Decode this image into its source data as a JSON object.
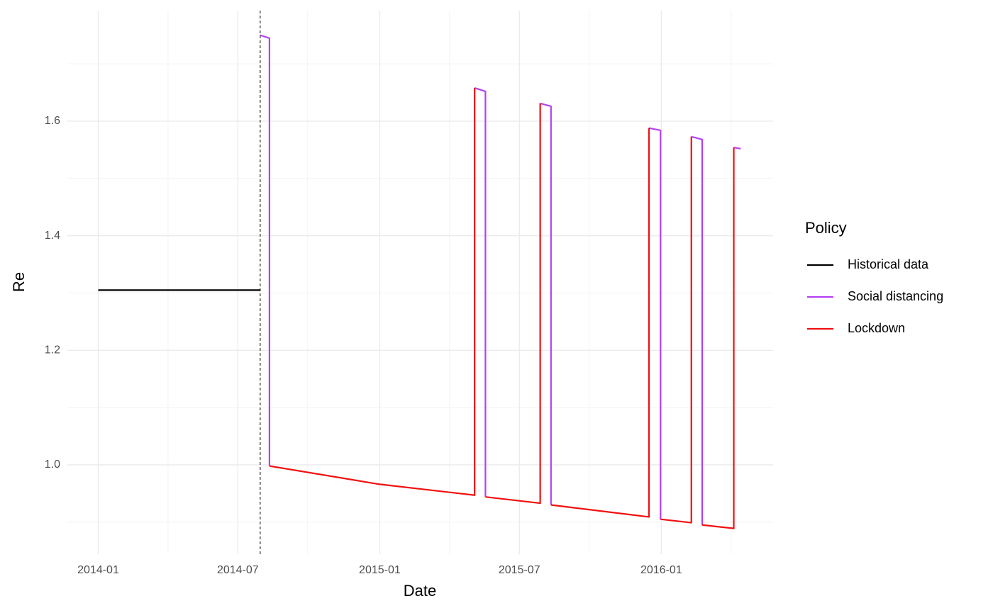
{
  "chart_data": {
    "type": "line",
    "x_label": "Date",
    "y_label": "Re",
    "legend_title": "Policy",
    "legend_position": "right",
    "grid": true,
    "xlim": [
      "2013-11-22",
      "2016-05-25"
    ],
    "xticks": [
      {
        "value": "2014-01-01",
        "label": "2014-01"
      },
      {
        "value": "2014-07-01",
        "label": "2014-07"
      },
      {
        "value": "2015-01-01",
        "label": "2015-01"
      },
      {
        "value": "2015-07-01",
        "label": "2015-07"
      },
      {
        "value": "2016-01-01",
        "label": "2016-01"
      }
    ],
    "ylim": [
      0.844,
      1.793
    ],
    "yticks": [
      {
        "value": 1,
        "label": "1.0"
      },
      1.2,
      1.4,
      1.6
    ],
    "vline": "2014-07-30",
    "series": [
      {
        "name": "Historical data",
        "color": "#000000",
        "x": [
          "2014-01-01",
          "2014-07-30"
        ],
        "values": [
          1.305,
          1.305
        ]
      },
      {
        "name": "Social distancing",
        "color": "#b541f5",
        "x": [
          "2014-07-30",
          "2014-08-11",
          "2014-08-11",
          null,
          "2015-05-04",
          "2015-05-18",
          "2015-05-18",
          null,
          "2015-07-28",
          "2015-08-11",
          "2015-08-11",
          null,
          "2015-12-16",
          "2015-12-31",
          "2015-12-31",
          null,
          "2016-02-09",
          "2016-02-23",
          "2016-02-23",
          null,
          "2016-04-04",
          "2016-04-13"
        ],
        "values": [
          1.75,
          1.745,
          0.998,
          null,
          1.658,
          1.652,
          0.944,
          null,
          1.631,
          1.626,
          0.93,
          null,
          1.588,
          1.584,
          0.905,
          null,
          1.573,
          1.568,
          0.895,
          null,
          1.554,
          1.552
        ]
      },
      {
        "name": "Lockdown",
        "color": "#f01010",
        "x": [
          "2014-08-11",
          "2015-01-01",
          "2015-05-04",
          "2015-05-04",
          null,
          "2015-05-18",
          "2015-07-28",
          "2015-07-28",
          null,
          "2015-08-11",
          "2015-12-16",
          "2015-12-16",
          null,
          "2015-12-31",
          "2016-02-09",
          "2016-02-09",
          null,
          "2016-02-23",
          "2016-04-04",
          "2016-04-04"
        ],
        "values": [
          0.998,
          0.966,
          0.947,
          1.658,
          null,
          0.944,
          0.933,
          1.631,
          null,
          0.93,
          0.909,
          1.588,
          null,
          0.905,
          0.899,
          1.573,
          null,
          0.895,
          0.889,
          1.554
        ]
      }
    ]
  }
}
